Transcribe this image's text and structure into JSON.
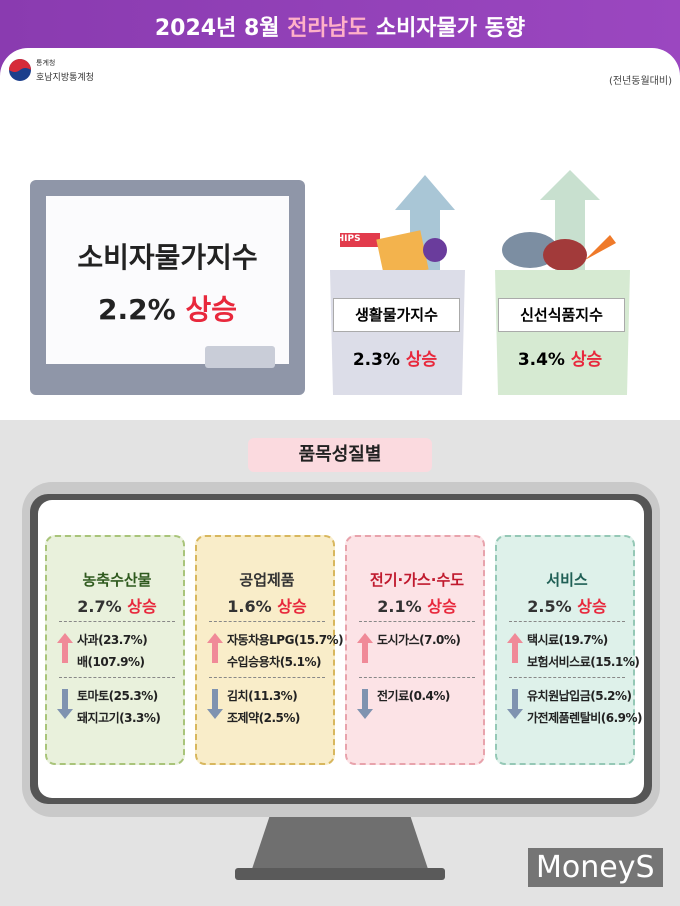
{
  "header": {
    "title_prefix": "2024년 8월",
    "title_region": "전라남도",
    "title_suffix": "소비자물가 동향",
    "org": "통계청",
    "org_sub": "호남지방통계청",
    "note": "(전년동월대비)"
  },
  "summary": {
    "main": {
      "label": "소비자물가지수",
      "value": "2.2%",
      "trend": "상승"
    },
    "chips": "CHIPS",
    "cards": [
      {
        "label": "생활물가지수",
        "value": "2.3%",
        "trend": "상승"
      },
      {
        "label": "신선식품지수",
        "value": "3.4%",
        "trend": "상승"
      }
    ]
  },
  "section_title": "품목성질별",
  "categories": [
    {
      "name": "농축수산물",
      "value": "2.7%",
      "trend": "상승",
      "up": [
        "사과(23.7%)",
        "배(107.9%)"
      ],
      "down": [
        "토마토(25.3%)",
        "돼지고기(3.3%)"
      ]
    },
    {
      "name": "공업제품",
      "value": "1.6%",
      "trend": "상승",
      "up": [
        "자동차용LPG(15.7%)",
        "수입승용차(5.1%)"
      ],
      "down": [
        "김치(11.3%)",
        "조제약(2.5%)"
      ]
    },
    {
      "name": "전기·가스·수도",
      "value": "2.1%",
      "trend": "상승",
      "up": [
        "도시가스(7.0%)"
      ],
      "down": [
        "전기료(0.4%)"
      ]
    },
    {
      "name": "서비스",
      "value": "2.5%",
      "trend": "상승",
      "up": [
        "택시료(19.7%)",
        "보험서비스료(15.1%)"
      ],
      "down": [
        "유치원납입금(5.2%)",
        "가전제품렌탈비(6.9%)"
      ]
    }
  ],
  "watermark": "MoneyS"
}
